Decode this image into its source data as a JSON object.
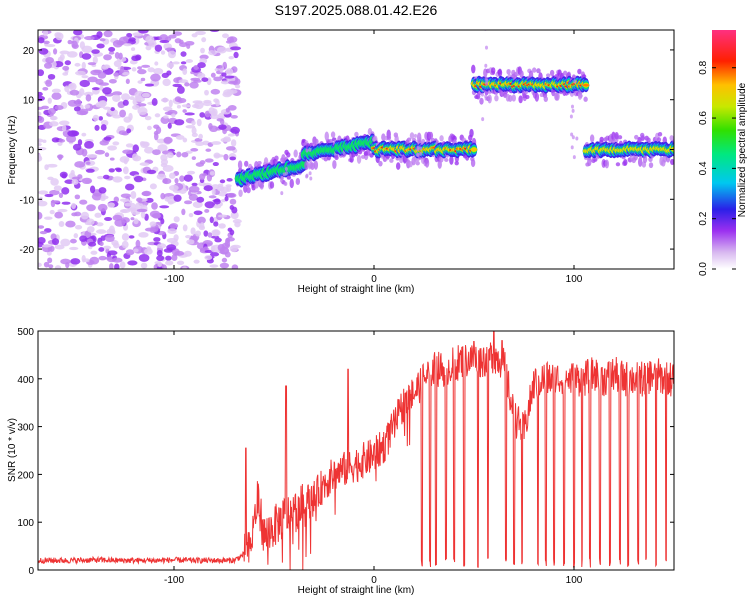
{
  "chart_data": [
    {
      "type": "heatmap",
      "title": "S197.2025.088.01.42.E26",
      "xlabel": "Height of straight line (km)",
      "ylabel": "Frequency (Hz)",
      "xlim": [
        -168,
        150
      ],
      "ylim": [
        -24,
        24
      ],
      "x_ticks": [
        -100,
        0,
        100
      ],
      "y_ticks": [
        -20,
        -10,
        0,
        10,
        20
      ],
      "colorbar": {
        "label": "Normalized spectral amplitude",
        "range": [
          0,
          0.95
        ],
        "ticks": [
          "0.0",
          "0.2",
          "0.4",
          "0.6",
          "0.8"
        ],
        "tick_values": [
          0,
          0.2,
          0.4,
          0.6,
          0.8
        ]
      },
      "segments": [
        {
          "name": "noise",
          "x": [
            -168,
            -68
          ],
          "freq": "scattered",
          "amplitude": 0.08
        },
        {
          "name": "dip",
          "x": [
            -68,
            -35
          ],
          "freq_start": -6,
          "freq_end": -3,
          "amplitude": 0.35
        },
        {
          "name": "rise",
          "x": [
            -35,
            0
          ],
          "freq_start": -1,
          "freq_end": 1.5,
          "amplitude": 0.45
        },
        {
          "name": "center",
          "x": [
            0,
            50
          ],
          "freq_start": 0,
          "freq_end": 0,
          "amplitude": 0.75
        },
        {
          "name": "shifted",
          "x": [
            50,
            106
          ],
          "freq_start": 13,
          "freq_end": 13,
          "amplitude": 0.75
        },
        {
          "name": "return",
          "x": [
            106,
            150
          ],
          "freq_start": 0,
          "freq_end": 0,
          "amplitude": 0.55
        }
      ]
    },
    {
      "type": "line",
      "xlabel": "Height of straight line (km)",
      "ylabel": "SNR (10 * v/v)",
      "xlim": [
        -168,
        150
      ],
      "ylim": [
        0,
        500
      ],
      "x_ticks": [
        -100,
        0,
        100
      ],
      "y_ticks": [
        0,
        100,
        200,
        300,
        400,
        500
      ],
      "color": "#ee3333",
      "x": [
        -168,
        -160,
        -150,
        -140,
        -130,
        -120,
        -110,
        -100,
        -90,
        -80,
        -70,
        -62,
        -58,
        -55,
        -50,
        -45,
        -40,
        -35,
        -30,
        -25,
        -20,
        -15,
        -10,
        -5,
        0,
        5,
        10,
        15,
        20,
        25,
        30,
        35,
        40,
        45,
        50,
        55,
        60,
        65,
        70,
        75,
        80,
        85,
        90,
        95,
        100,
        105,
        110,
        115,
        120,
        125,
        130,
        135,
        140,
        145,
        150
      ],
      "y": [
        20,
        20,
        20,
        21,
        20,
        20,
        20,
        21,
        20,
        20,
        20,
        40,
        150,
        70,
        90,
        110,
        120,
        140,
        150,
        180,
        200,
        210,
        220,
        230,
        240,
        260,
        300,
        350,
        370,
        400,
        420,
        420,
        430,
        440,
        440,
        440,
        450,
        430,
        320,
        290,
        390,
        400,
        400,
        400,
        400,
        400,
        410,
        400,
        410,
        400,
        400,
        400,
        410,
        400,
        400
      ],
      "spikes": [
        {
          "x": -64,
          "y": 255
        },
        {
          "x": -44,
          "y": 385
        },
        {
          "x": -13,
          "y": 420
        },
        {
          "x": 50,
          "y": 478
        },
        {
          "x": 60,
          "y": 500
        },
        {
          "x": 64,
          "y": 480
        }
      ],
      "dropouts_x": [
        24,
        28,
        31,
        36,
        40,
        45,
        52,
        57,
        66,
        70,
        74,
        82,
        86,
        90,
        95,
        100,
        104,
        108,
        113,
        118,
        123,
        127,
        132,
        136,
        141,
        146
      ]
    }
  ]
}
